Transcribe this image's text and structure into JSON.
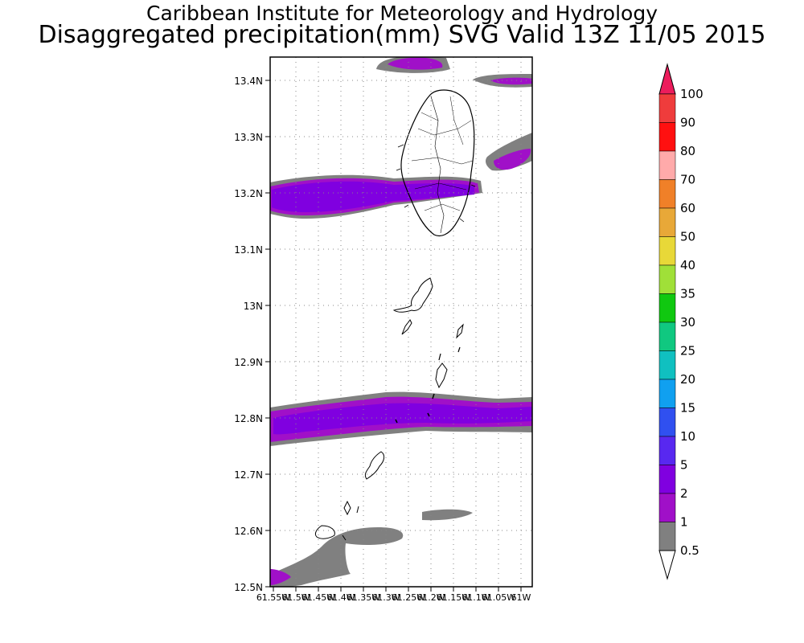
{
  "header": {
    "title": "Caribbean Institute for Meteorology and Hydrology",
    "subtitle": "Disaggregated precipitation(mm) SVG Valid 13Z 11/05 2015"
  },
  "map": {
    "lat_labels": [
      "13.4N",
      "13.3N",
      "13.2N",
      "13.1N",
      "13N",
      "12.9N",
      "12.8N",
      "12.7N",
      "12.6N",
      "12.5N"
    ],
    "lon_labels": [
      "61.55W",
      "61.5W",
      "61.45W",
      "61.4W",
      "61.35W",
      "61.3W",
      "61.25W",
      "61.2W",
      "61.15W",
      "61.1W",
      "61.05W",
      "61W"
    ],
    "gridlines": true
  },
  "colorbar": {
    "labels": [
      "100",
      "90",
      "80",
      "70",
      "60",
      "50",
      "40",
      "35",
      "30",
      "25",
      "20",
      "15",
      "10",
      "5",
      "2",
      "1",
      "0.5"
    ],
    "colors": [
      "#ec1c5c",
      "#ef3c3c",
      "#ff1010",
      "#ffaaaa",
      "#f08028",
      "#e8a838",
      "#e8d838",
      "#a0e038",
      "#10c810",
      "#10c880",
      "#10c0c0",
      "#10a0f0",
      "#3050f0",
      "#5828f0",
      "#8000e0",
      "#a010c8",
      "#808080",
      "#ffffff"
    ]
  }
}
